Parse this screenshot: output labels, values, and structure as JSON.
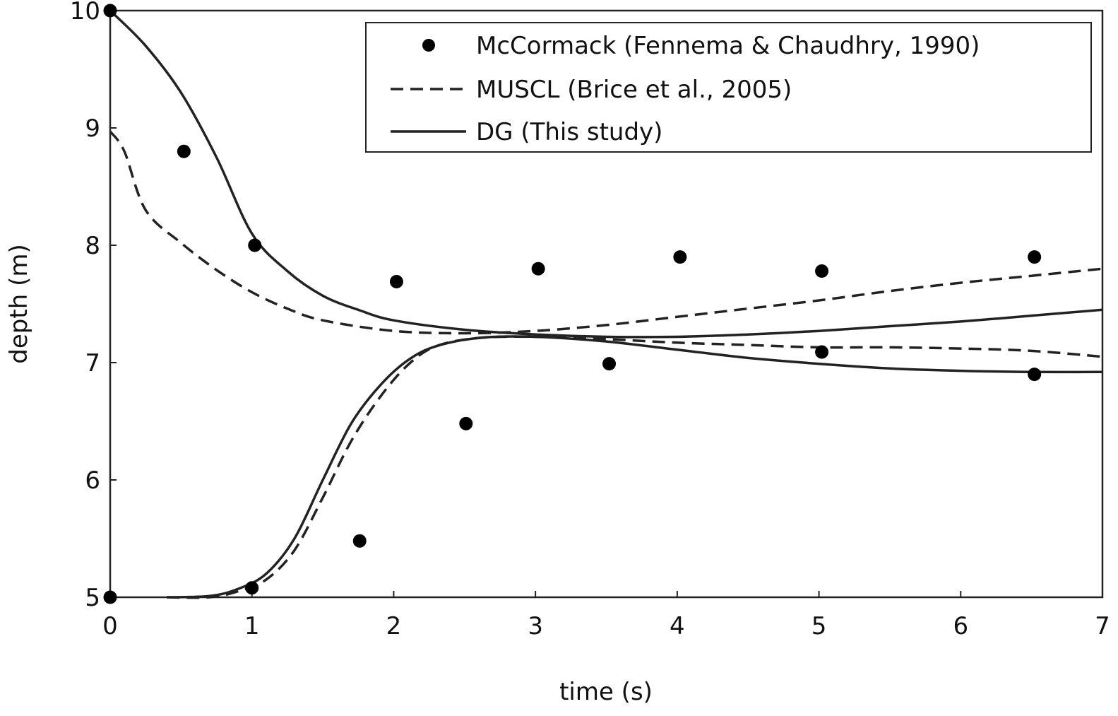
{
  "chart_data": {
    "type": "line",
    "title": "",
    "xlabel": "time (s)",
    "ylabel": "depth (m)",
    "xlim": [
      0,
      7
    ],
    "ylim": [
      5,
      10
    ],
    "xticks": [
      "0",
      "1",
      "2",
      "3",
      "4",
      "5",
      "6",
      "7"
    ],
    "yticks": [
      "5",
      "6",
      "7",
      "8",
      "9",
      "10"
    ],
    "grid": false,
    "legend_position": "top-right",
    "legend": [
      {
        "label": "McCormack (Fennema & Chaudhry, 1990)",
        "style": "markers"
      },
      {
        "label": "MUSCL (Brice et al., 2005)",
        "style": "dashed"
      },
      {
        "label": "DG (This study)",
        "style": "solid"
      }
    ],
    "series": [
      {
        "name": "McCormack (Fennema & Chaudhry, 1990)",
        "style": "markers",
        "points": [
          [
            0,
            10
          ],
          [
            0.52,
            8.8
          ],
          [
            1.02,
            8.0
          ],
          [
            2.02,
            7.69
          ],
          [
            3.02,
            7.8
          ],
          [
            4.02,
            7.9
          ],
          [
            5.02,
            7.78
          ],
          [
            6.52,
            7.9
          ],
          [
            0,
            5
          ],
          [
            1.0,
            5.08
          ],
          [
            1.76,
            5.48
          ],
          [
            2.51,
            6.48
          ],
          [
            3.52,
            6.99
          ],
          [
            5.02,
            7.09
          ],
          [
            6.52,
            6.9
          ]
        ]
      },
      {
        "name": "MUSCL (Brice et al., 2005)",
        "style": "dashed",
        "curves": [
          [
            [
              0,
              8.97
            ],
            [
              0.1,
              8.8
            ],
            [
              0.25,
              8.3
            ],
            [
              0.5,
              8.02
            ],
            [
              0.75,
              7.79
            ],
            [
              1.0,
              7.6
            ],
            [
              1.25,
              7.46
            ],
            [
              1.5,
              7.36
            ],
            [
              2.0,
              7.27
            ],
            [
              2.5,
              7.25
            ],
            [
              3.0,
              7.27
            ],
            [
              3.5,
              7.32
            ],
            [
              4.0,
              7.39
            ],
            [
              4.5,
              7.46
            ],
            [
              5.0,
              7.53
            ],
            [
              5.5,
              7.61
            ],
            [
              6.0,
              7.68
            ],
            [
              6.5,
              7.74
            ],
            [
              7.0,
              7.8
            ]
          ],
          [
            [
              0.4,
              5.0
            ],
            [
              0.7,
              5.0
            ],
            [
              0.9,
              5.05
            ],
            [
              1.1,
              5.15
            ],
            [
              1.3,
              5.4
            ],
            [
              1.5,
              5.85
            ],
            [
              1.7,
              6.33
            ],
            [
              1.9,
              6.7
            ],
            [
              2.1,
              6.98
            ],
            [
              2.3,
              7.14
            ],
            [
              2.6,
              7.21
            ],
            [
              3.0,
              7.22
            ],
            [
              3.5,
              7.2
            ],
            [
              4.0,
              7.17
            ],
            [
              4.5,
              7.15
            ],
            [
              5.0,
              7.13
            ],
            [
              5.5,
              7.13
            ],
            [
              6.0,
              7.12
            ],
            [
              6.5,
              7.1
            ],
            [
              7.0,
              7.05
            ]
          ]
        ]
      },
      {
        "name": "DG (This study)",
        "style": "solid",
        "curves": [
          [
            [
              0,
              10.0
            ],
            [
              0.25,
              9.7
            ],
            [
              0.5,
              9.3
            ],
            [
              0.75,
              8.75
            ],
            [
              1.0,
              8.1
            ],
            [
              1.25,
              7.78
            ],
            [
              1.5,
              7.57
            ],
            [
              1.75,
              7.45
            ],
            [
              2.0,
              7.36
            ],
            [
              2.5,
              7.28
            ],
            [
              3.0,
              7.24
            ],
            [
              3.5,
              7.22
            ],
            [
              4.0,
              7.22
            ],
            [
              4.5,
              7.24
            ],
            [
              5.0,
              7.27
            ],
            [
              5.5,
              7.31
            ],
            [
              6.0,
              7.35
            ],
            [
              6.5,
              7.4
            ],
            [
              7.0,
              7.45
            ]
          ],
          [
            [
              0.4,
              5.0
            ],
            [
              0.7,
              5.01
            ],
            [
              0.9,
              5.07
            ],
            [
              1.1,
              5.2
            ],
            [
              1.3,
              5.5
            ],
            [
              1.5,
              6.0
            ],
            [
              1.7,
              6.48
            ],
            [
              1.9,
              6.8
            ],
            [
              2.1,
              7.02
            ],
            [
              2.3,
              7.14
            ],
            [
              2.6,
              7.21
            ],
            [
              3.0,
              7.22
            ],
            [
              3.5,
              7.18
            ],
            [
              4.0,
              7.11
            ],
            [
              4.5,
              7.04
            ],
            [
              5.0,
              6.99
            ],
            [
              5.5,
              6.95
            ],
            [
              6.0,
              6.93
            ],
            [
              6.5,
              6.92
            ],
            [
              7.0,
              6.92
            ]
          ]
        ]
      }
    ]
  }
}
